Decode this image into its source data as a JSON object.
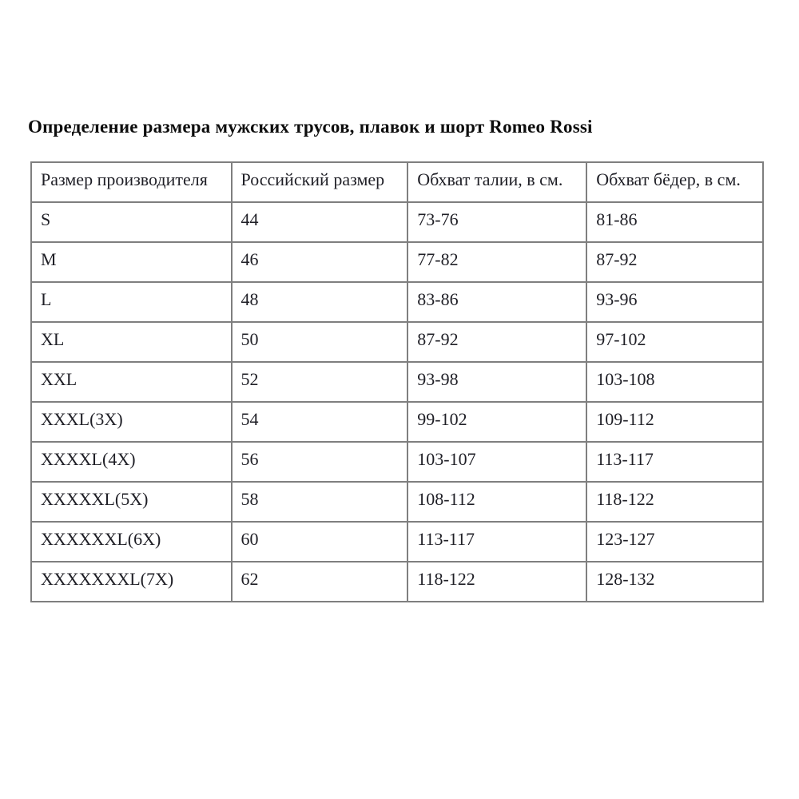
{
  "page": {
    "title": "Определение размера мужских трусов, плавок и шорт Romeo Rossi"
  },
  "table": {
    "columns": [
      "Размер производителя",
      "Российский размер",
      "Обхват талии, в см.",
      "Обхват бёдер, в см."
    ],
    "rows": [
      [
        "S",
        "44",
        "73-76",
        "81-86"
      ],
      [
        "M",
        "46",
        "77-82",
        "87-92"
      ],
      [
        "L",
        "48",
        "83-86",
        "93-96"
      ],
      [
        "XL",
        "50",
        "87-92",
        "97-102"
      ],
      [
        "XXL",
        "52",
        "93-98",
        "103-108"
      ],
      [
        "XXXL(3X)",
        "54",
        "99-102",
        "109-112"
      ],
      [
        "XXXXL(4X)",
        "56",
        "103-107",
        "113-117"
      ],
      [
        "XXXXXL(5X)",
        "58",
        "108-112",
        "118-122"
      ],
      [
        "XXXXXXL(6X)",
        "60",
        "113-117",
        "123-127"
      ],
      [
        "XXXXXXXL(7X)",
        "62",
        "118-122",
        "128-132"
      ]
    ],
    "colors": {
      "border": "#7f7f7f",
      "text": "#1f1f26",
      "background": "#ffffff"
    }
  }
}
